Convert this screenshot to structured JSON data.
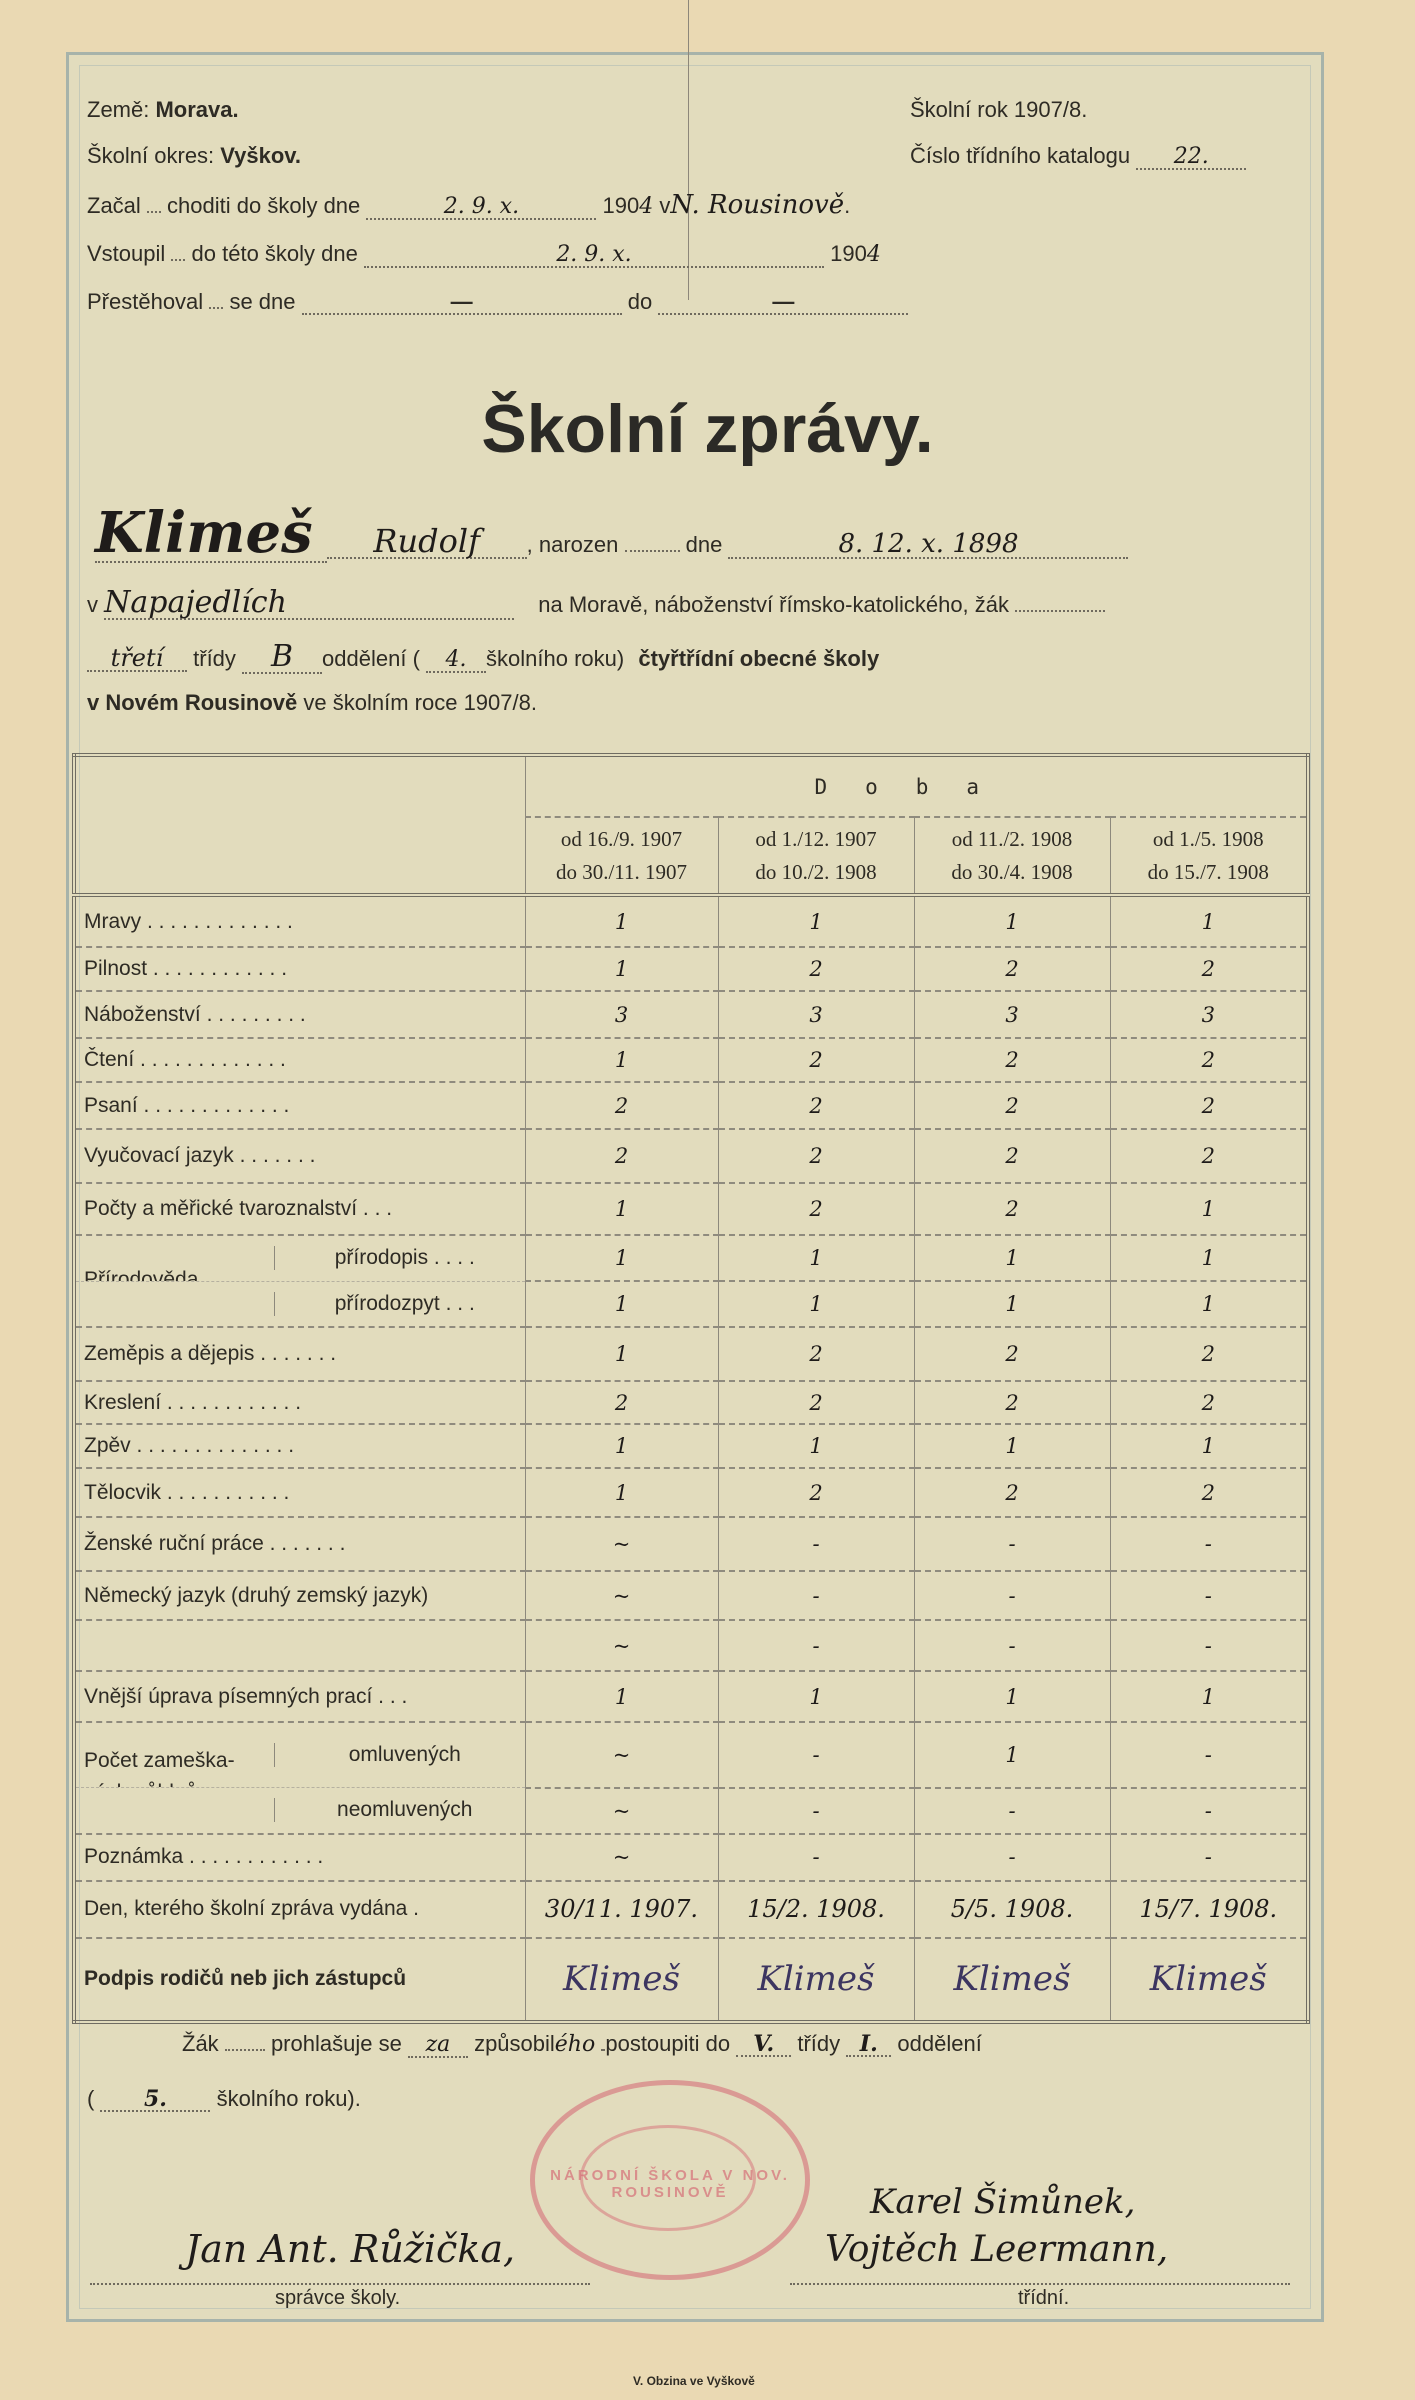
{
  "header": {
    "zeme_label": "Země:",
    "zeme": "Morava.",
    "rok": "Školní rok 1907/8.",
    "okres_label": "Školní okres:",
    "okres": "Vyškov.",
    "katalog_label": "Číslo třídního katalogu",
    "katalog": "22.",
    "zacal_label": "Začal",
    "zacal_text": "choditi do školy dne",
    "zacal_date": "2. 9. x.",
    "zacal_year": "190",
    "zacal_year_hw": "4",
    "zacal_place_prefix": "v",
    "zacal_place": "N. Rousinově",
    "zacal_end": ".",
    "vstoupil_label": "Vstoupil",
    "vstoupil_text": "do této školy dne",
    "vstoupil_date": "2. 9. x.",
    "vstoupil_year": "190",
    "vstoupil_year_hw": "4",
    "prest_label": "Přestěhoval",
    "prest_text": "se dne",
    "prest_value": "—",
    "prest_do": "do",
    "prest_do_value": "—"
  },
  "title": "Školní zprávy.",
  "student": {
    "surname": "Klimeš",
    "name": "Rudolf",
    "narozen": ", narozen",
    "dne": "dne",
    "birth_date": "8. 12. x. 1898",
    "v": "v",
    "birthplace": "Napajedlích",
    "line2": "na Moravě, náboženství římsko-katolického, žák",
    "trida_hw": "třetí",
    "tridy": "třídy",
    "oddeleni_hw": "B",
    "oddeleni": "oddělení (",
    "rok_hw": "4.",
    "skolniho_roku": "školního roku)",
    "school": "čtyřtřídní obecné školy",
    "line4_a": "v Novém Rousinově",
    "line4_b": "ve školním roce 1907/8."
  },
  "table": {
    "doba": "Doba",
    "periods": [
      {
        "from": "od 16./9. 1907",
        "to": "do 30./11. 1907"
      },
      {
        "from": "od 1./12. 1907",
        "to": "do 10./2. 1908"
      },
      {
        "from": "od 11./2. 1908",
        "to": "do 30./4. 1908"
      },
      {
        "from": "od 1./5. 1908",
        "to": "do 15./7. 1908"
      }
    ],
    "rows": [
      {
        "label": "Mravy . . . . . . . . . . . . .",
        "grades": [
          "1",
          "1",
          "1",
          "1"
        ]
      },
      {
        "label": "Pilnost . . . . . . . . . . . .",
        "grades": [
          "1",
          "2",
          "2",
          "2"
        ]
      },
      {
        "label": "Náboženství . . . . . . . . .",
        "grades": [
          "3",
          "3",
          "3",
          "3"
        ]
      },
      {
        "label": "Čtení . . . . . . . . . . . . .",
        "grades": [
          "1",
          "2",
          "2",
          "2"
        ]
      },
      {
        "label": "Psaní . . . . . . . . . . . . .",
        "grades": [
          "2",
          "2",
          "2",
          "2"
        ]
      },
      {
        "label": "Vyučovací jazyk . . . . . . .",
        "grades": [
          "2",
          "2",
          "2",
          "2"
        ]
      },
      {
        "label": "Počty a měřické tvaroznalství . . .",
        "grades": [
          "1",
          "2",
          "2",
          "1"
        ]
      },
      {
        "group": "Přírodověda",
        "label": "přírodopis . . . .",
        "grades": [
          "1",
          "1",
          "1",
          "1"
        ]
      },
      {
        "group": "Přírodověda",
        "label": "přírodozpyt . . .",
        "grades": [
          "1",
          "1",
          "1",
          "1"
        ]
      },
      {
        "label": "Zeměpis a dějepis . . . . . . .",
        "grades": [
          "1",
          "2",
          "2",
          "2"
        ]
      },
      {
        "label": "Kreslení . . . . . . . . . . . .",
        "grades": [
          "2",
          "2",
          "2",
          "2"
        ]
      },
      {
        "label": "Zpěv . . . . . . . . . . . . . .",
        "grades": [
          "1",
          "1",
          "1",
          "1"
        ]
      },
      {
        "label": "Tělocvik . . . . . . . . . . .",
        "grades": [
          "1",
          "2",
          "2",
          "2"
        ]
      },
      {
        "label": "Ženské ruční práce . . . . . . .",
        "grades": [
          "~",
          "-",
          "-",
          "-"
        ]
      },
      {
        "label": "Německý jazyk (druhý zemský jazyk)",
        "grades": [
          "~",
          "-",
          "-",
          "-"
        ]
      },
      {
        "label": "",
        "grades": [
          "~",
          "-",
          "-",
          "-"
        ]
      },
      {
        "label": "Vnější úprava písemných prací . . .",
        "grades": [
          "1",
          "1",
          "1",
          "1"
        ]
      },
      {
        "group": "Počet zameška-ných půldnů",
        "label": "omluvených",
        "grades": [
          "~",
          "-",
          "1",
          "-"
        ]
      },
      {
        "group": "Počet zameška-ných půldnů",
        "label": "neomluvených",
        "grades": [
          "~",
          "-",
          "-",
          "-"
        ]
      },
      {
        "label": "Poznámka . . . . . . . . . . . .",
        "grades": [
          "~",
          "-",
          "-",
          "-"
        ]
      },
      {
        "label": "Den, kterého školní zpráva vydána .",
        "grades": [
          "30/11. 1907.",
          "15/2. 1908.",
          "5/5. 1908.",
          "15/7. 1908."
        ]
      },
      {
        "label": "Podpis rodičů neb jich zástupců",
        "bold": true,
        "signature": true,
        "grades": [
          "Klimeš",
          "Klimeš",
          "Klimeš",
          "Klimeš"
        ]
      }
    ]
  },
  "footer": {
    "zak": "Žák",
    "prohlasuje": "prohlašuje se",
    "se_hw": "za",
    "zpusobil": "způsobil",
    "zpusobil_hw": "ého",
    "postoupiti": "postoupiti do",
    "trida_hw": "V.",
    "tridy": "třídy",
    "odd_hw": "I.",
    "oddeleni": "oddělení",
    "paren_open": "(",
    "rok_hw": "5.",
    "skolniho_roku": "školního roku).",
    "stamp_text": "NÁRODNÍ ŠKOLA V NOV. ROUSINOVĚ",
    "spravce_sig": "Jan Ant. Růžička,",
    "spravce_label": "správce školy.",
    "tridni_sig1": "Karel Šimůnek,",
    "tridni_sig2": "Vojtěch Leermann,",
    "tridni_label": "třídní.",
    "printer": "V. Obzina ve Vyškově"
  },
  "colors": {
    "paper": "#ead9b3",
    "form": "#e2dcbd",
    "frame": "#a7b3aa",
    "ink": "#1f1c1a",
    "signature_ink": "#3c3560",
    "stamp": "#d66e78"
  }
}
